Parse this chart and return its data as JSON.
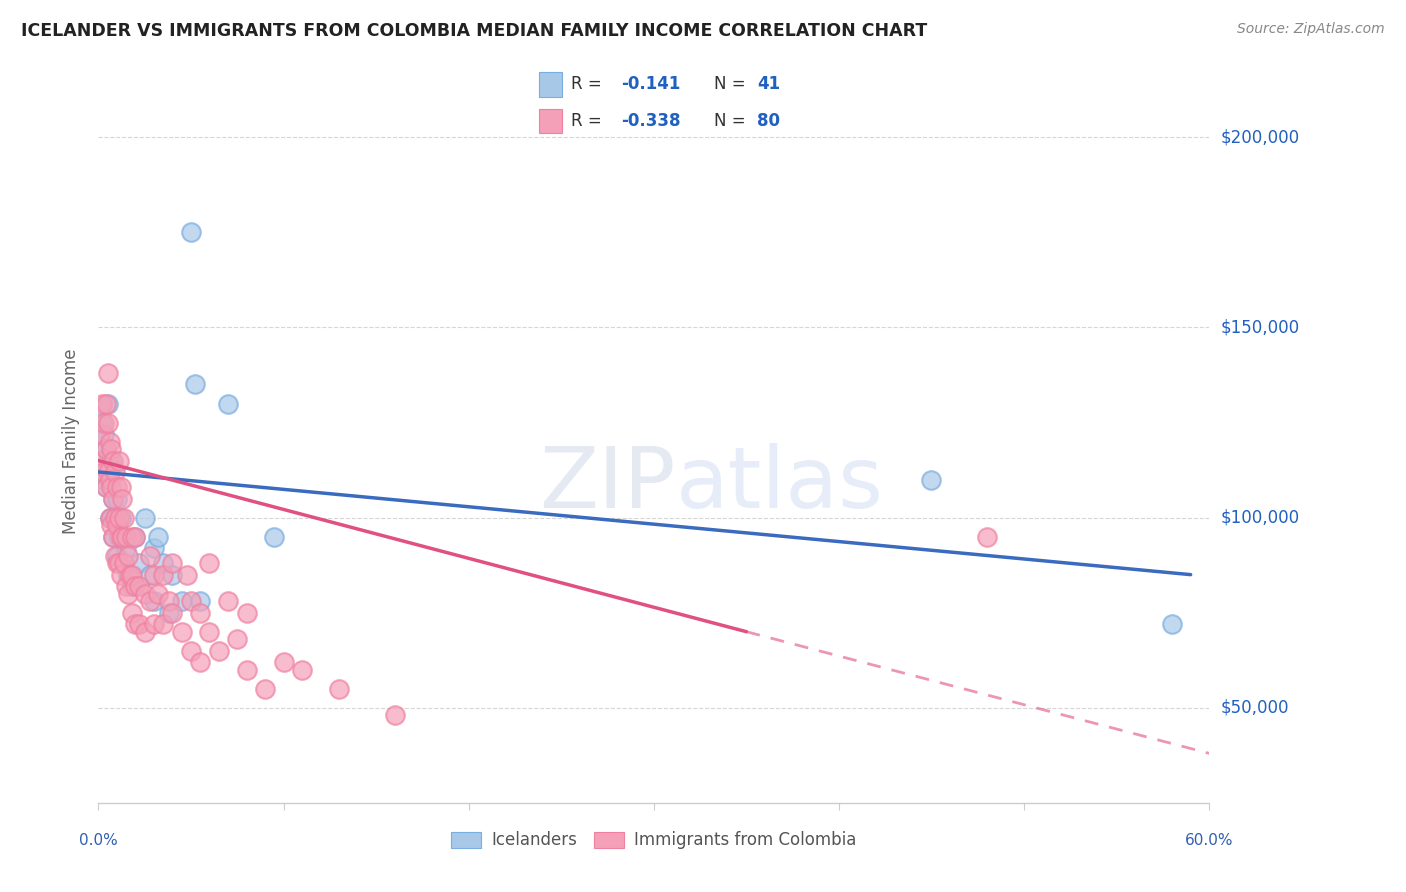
{
  "title": "ICELANDER VS IMMIGRANTS FROM COLOMBIA MEDIAN FAMILY INCOME CORRELATION CHART",
  "source": "Source: ZipAtlas.com",
  "ylabel": "Median Family Income",
  "yticks": [
    50000,
    100000,
    150000,
    200000
  ],
  "ytick_labels": [
    "$50,000",
    "$100,000",
    "$150,000",
    "$200,000"
  ],
  "xlim": [
    0.0,
    0.6
  ],
  "ylim": [
    25000,
    215000
  ],
  "watermark_zip": "ZIP",
  "watermark_atlas": "atlas",
  "legend_R1": "R = ",
  "legend_V1": "-0.141",
  "legend_N1_label": "N = ",
  "legend_N1_val": "41",
  "legend_R2": "R = ",
  "legend_V2": "-0.338",
  "legend_N2_label": "N = ",
  "legend_N2_val": "80",
  "color_blue": "#a8c8e8",
  "color_pink": "#f4a0b8",
  "color_blue_edge": "#7aade0",
  "color_pink_edge": "#f080a0",
  "color_blue_line": "#3a6bbf",
  "color_pink_line": "#e05080",
  "color_blue_text": "#2060c0",
  "scatter_blue": [
    [
      0.001,
      120000
    ],
    [
      0.002,
      125000
    ],
    [
      0.003,
      122000
    ],
    [
      0.003,
      110000
    ],
    [
      0.004,
      118000
    ],
    [
      0.004,
      108000
    ],
    [
      0.005,
      130000
    ],
    [
      0.005,
      115000
    ],
    [
      0.006,
      112000
    ],
    [
      0.006,
      100000
    ],
    [
      0.007,
      115000
    ],
    [
      0.007,
      100000
    ],
    [
      0.008,
      105000
    ],
    [
      0.008,
      95000
    ],
    [
      0.009,
      100000
    ],
    [
      0.01,
      105000
    ],
    [
      0.01,
      90000
    ],
    [
      0.011,
      95000
    ],
    [
      0.012,
      100000
    ],
    [
      0.013,
      95000
    ],
    [
      0.015,
      92000
    ],
    [
      0.016,
      85000
    ],
    [
      0.018,
      82000
    ],
    [
      0.02,
      95000
    ],
    [
      0.022,
      88000
    ],
    [
      0.025,
      100000
    ],
    [
      0.028,
      85000
    ],
    [
      0.03,
      78000
    ],
    [
      0.03,
      92000
    ],
    [
      0.032,
      95000
    ],
    [
      0.035,
      88000
    ],
    [
      0.038,
      75000
    ],
    [
      0.04,
      85000
    ],
    [
      0.045,
      78000
    ],
    [
      0.05,
      175000
    ],
    [
      0.052,
      135000
    ],
    [
      0.055,
      78000
    ],
    [
      0.07,
      130000
    ],
    [
      0.095,
      95000
    ],
    [
      0.45,
      110000
    ],
    [
      0.58,
      72000
    ]
  ],
  "scatter_pink": [
    [
      0.001,
      122000
    ],
    [
      0.002,
      130000
    ],
    [
      0.002,
      115000
    ],
    [
      0.003,
      125000
    ],
    [
      0.003,
      112000
    ],
    [
      0.004,
      130000
    ],
    [
      0.004,
      118000
    ],
    [
      0.004,
      108000
    ],
    [
      0.005,
      138000
    ],
    [
      0.005,
      125000
    ],
    [
      0.005,
      112000
    ],
    [
      0.006,
      120000
    ],
    [
      0.006,
      110000
    ],
    [
      0.006,
      100000
    ],
    [
      0.007,
      118000
    ],
    [
      0.007,
      108000
    ],
    [
      0.007,
      98000
    ],
    [
      0.008,
      115000
    ],
    [
      0.008,
      105000
    ],
    [
      0.008,
      95000
    ],
    [
      0.009,
      112000
    ],
    [
      0.009,
      100000
    ],
    [
      0.009,
      90000
    ],
    [
      0.01,
      108000
    ],
    [
      0.01,
      98000
    ],
    [
      0.01,
      88000
    ],
    [
      0.011,
      115000
    ],
    [
      0.011,
      100000
    ],
    [
      0.011,
      88000
    ],
    [
      0.012,
      108000
    ],
    [
      0.012,
      95000
    ],
    [
      0.012,
      85000
    ],
    [
      0.013,
      105000
    ],
    [
      0.013,
      95000
    ],
    [
      0.014,
      100000
    ],
    [
      0.014,
      88000
    ],
    [
      0.015,
      95000
    ],
    [
      0.015,
      82000
    ],
    [
      0.016,
      90000
    ],
    [
      0.016,
      80000
    ],
    [
      0.017,
      85000
    ],
    [
      0.018,
      95000
    ],
    [
      0.018,
      85000
    ],
    [
      0.018,
      75000
    ],
    [
      0.02,
      95000
    ],
    [
      0.02,
      82000
    ],
    [
      0.02,
      72000
    ],
    [
      0.022,
      82000
    ],
    [
      0.022,
      72000
    ],
    [
      0.025,
      80000
    ],
    [
      0.025,
      70000
    ],
    [
      0.028,
      90000
    ],
    [
      0.028,
      78000
    ],
    [
      0.03,
      85000
    ],
    [
      0.03,
      72000
    ],
    [
      0.032,
      80000
    ],
    [
      0.035,
      85000
    ],
    [
      0.035,
      72000
    ],
    [
      0.038,
      78000
    ],
    [
      0.04,
      88000
    ],
    [
      0.04,
      75000
    ],
    [
      0.045,
      70000
    ],
    [
      0.048,
      85000
    ],
    [
      0.05,
      78000
    ],
    [
      0.05,
      65000
    ],
    [
      0.055,
      75000
    ],
    [
      0.055,
      62000
    ],
    [
      0.06,
      88000
    ],
    [
      0.06,
      70000
    ],
    [
      0.065,
      65000
    ],
    [
      0.07,
      78000
    ],
    [
      0.075,
      68000
    ],
    [
      0.08,
      75000
    ],
    [
      0.08,
      60000
    ],
    [
      0.09,
      55000
    ],
    [
      0.1,
      62000
    ],
    [
      0.11,
      60000
    ],
    [
      0.13,
      55000
    ],
    [
      0.16,
      48000
    ],
    [
      0.48,
      95000
    ]
  ],
  "trend_blue_x0": 0.0,
  "trend_blue_x1": 0.59,
  "trend_blue_y0": 112000,
  "trend_blue_y1": 85000,
  "trend_pink_solid_x0": 0.0,
  "trend_pink_solid_x1": 0.35,
  "trend_pink_solid_y0": 115000,
  "trend_pink_solid_y1": 70000,
  "trend_pink_dash_x0": 0.35,
  "trend_pink_dash_x1": 0.6,
  "trend_pink_dash_y0": 70000,
  "trend_pink_dash_y1": 38000,
  "background_color": "#ffffff",
  "grid_color": "#cccccc",
  "title_color": "#222222",
  "axis_label_color": "#666666",
  "ytick_color": "#2060c0",
  "source_color": "#888888"
}
